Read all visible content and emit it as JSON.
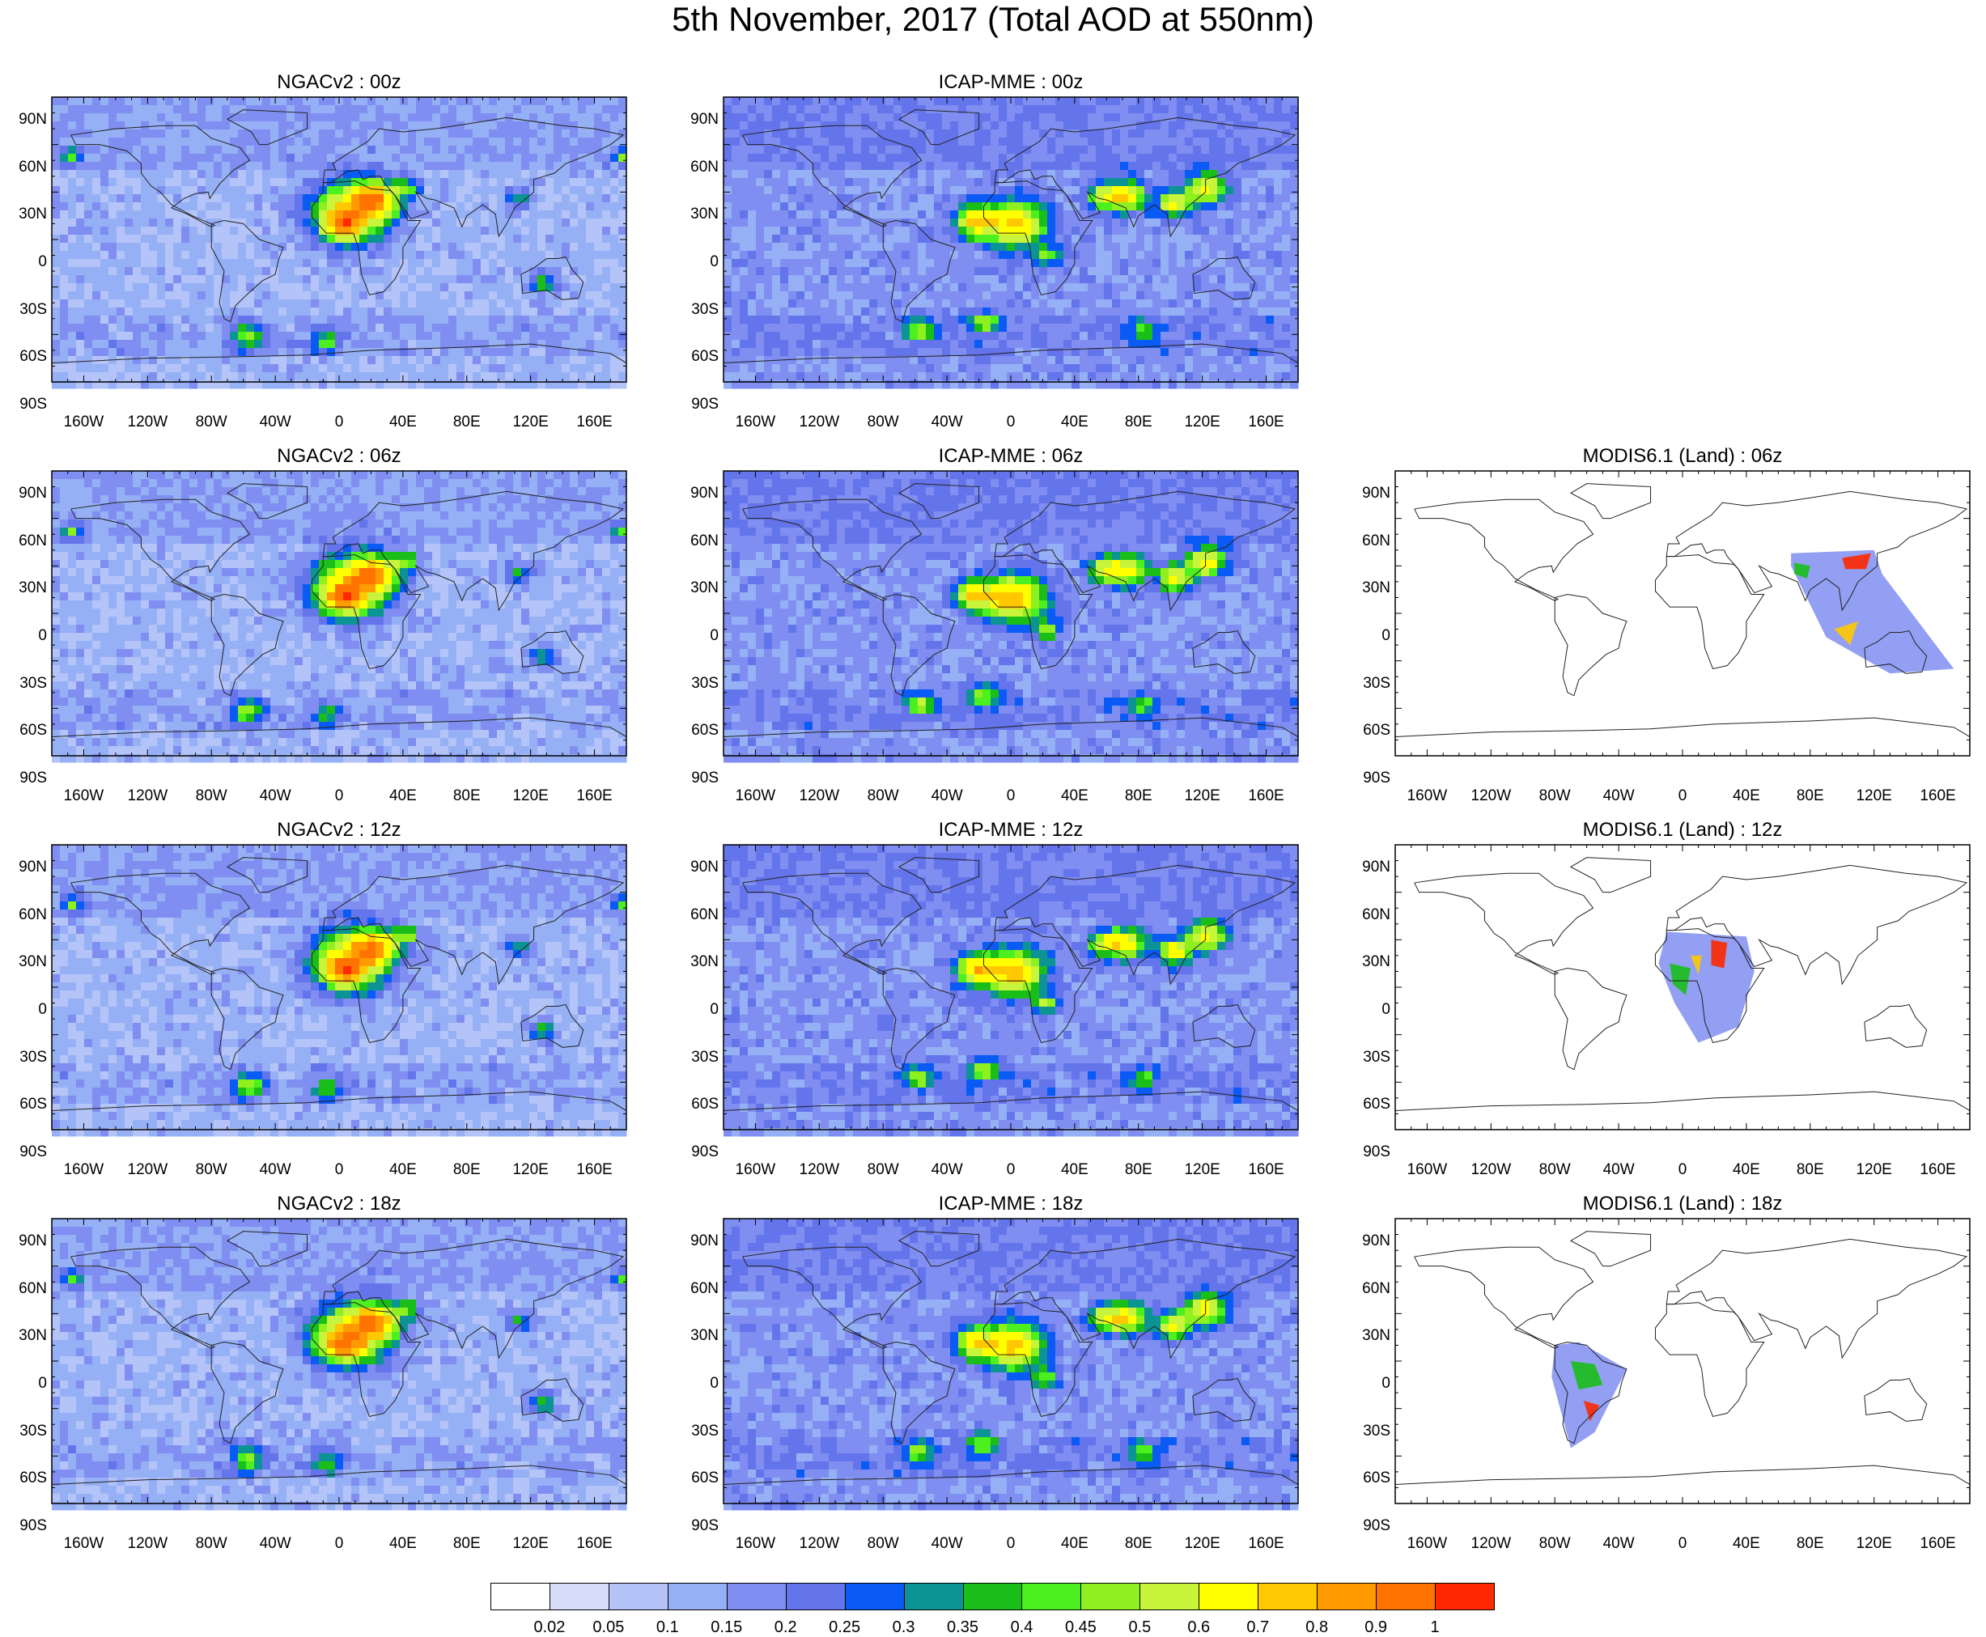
{
  "title": "5th November, 2017 (Total AOD at 550nm)",
  "lat_ticks": [
    "90N",
    "60N",
    "30N",
    "0",
    "30S",
    "60S",
    "90S"
  ],
  "lon_ticks": [
    "160W",
    "120W",
    "80W",
    "40W",
    "0",
    "40E",
    "80E",
    "120E",
    "160E"
  ],
  "panels": [
    {
      "id": "ngac-00",
      "title": "NGACv2 : 00z",
      "kind": "model-ngac",
      "col": 0,
      "row": 0
    },
    {
      "id": "icap-00",
      "title": "ICAP-MME : 00z",
      "kind": "model-icap",
      "col": 1,
      "row": 0
    },
    {
      "id": "ngac-06",
      "title": "NGACv2 : 06z",
      "kind": "model-ngac",
      "col": 0,
      "row": 1
    },
    {
      "id": "icap-06",
      "title": "ICAP-MME : 06z",
      "kind": "model-icap",
      "col": 1,
      "row": 1
    },
    {
      "id": "modis-06",
      "title": "MODIS6.1 (Land) : 06z",
      "kind": "modis-asia",
      "col": 2,
      "row": 1
    },
    {
      "id": "ngac-12",
      "title": "NGACv2 : 12z",
      "kind": "model-ngac",
      "col": 0,
      "row": 2
    },
    {
      "id": "icap-12",
      "title": "ICAP-MME : 12z",
      "kind": "model-icap",
      "col": 1,
      "row": 2
    },
    {
      "id": "modis-12",
      "title": "MODIS6.1 (Land) : 12z",
      "kind": "modis-africa",
      "col": 2,
      "row": 2
    },
    {
      "id": "ngac-18",
      "title": "NGACv2 : 18z",
      "kind": "model-ngac",
      "col": 0,
      "row": 3
    },
    {
      "id": "icap-18",
      "title": "ICAP-MME : 18z",
      "kind": "model-icap",
      "col": 1,
      "row": 3
    },
    {
      "id": "modis-18",
      "title": "MODIS6.1 (Land) : 18z",
      "kind": "modis-samerica",
      "col": 2,
      "row": 3
    }
  ],
  "colorbar": {
    "labels": [
      "0.02",
      "0.05",
      "0.1",
      "0.15",
      "0.2",
      "0.25",
      "0.3",
      "0.35",
      "0.4",
      "0.45",
      "0.5",
      "0.6",
      "0.7",
      "0.8",
      "0.9",
      "1"
    ],
    "colors": [
      "#ffffff",
      "#d6defa",
      "#b4c4f8",
      "#96b0f6",
      "#7f8ef0",
      "#6474ea",
      "#0a5af5",
      "#0c9494",
      "#19be19",
      "#4cf01e",
      "#8ef01e",
      "#c8f53c",
      "#ffff00",
      "#ffc800",
      "#ff9b00",
      "#ff7300",
      "#ff2800"
    ]
  }
}
